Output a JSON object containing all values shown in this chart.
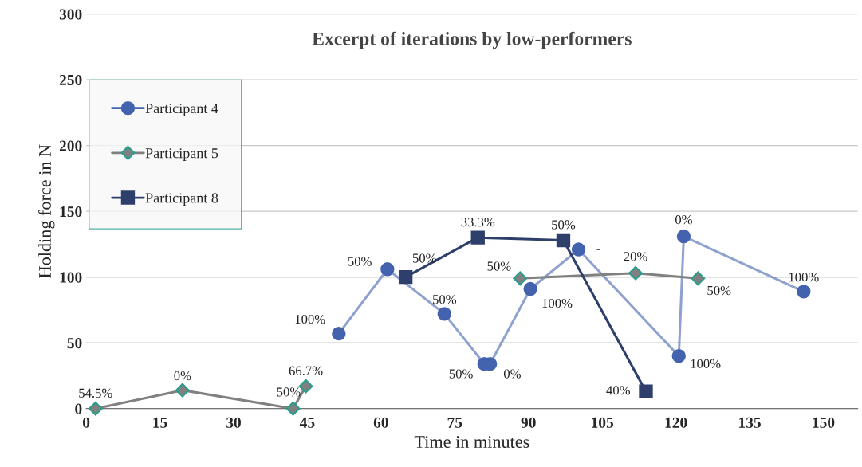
{
  "chart_data": {
    "type": "line",
    "title": "Excerpt of iterations by low-performers",
    "xlabel": "Time in minutes",
    "ylabel": "Holding force in N",
    "xlim": [
      0,
      157
    ],
    "xticks": [
      0,
      15,
      30,
      45,
      60,
      75,
      90,
      105,
      120,
      135,
      150
    ],
    "ylim": [
      0,
      300
    ],
    "yticks": [
      0,
      50,
      100,
      150,
      200,
      250,
      300
    ],
    "grid": "y",
    "legend": "top left",
    "series": [
      {
        "name": "Participant 4",
        "color": "#4463ae",
        "marker": "circle",
        "x": [
          51.4,
          61.3,
          72.9,
          81.0,
          82.2,
          90.4,
          100.2,
          120.6,
          121.6,
          146.0
        ],
        "values": [
          57,
          106,
          72,
          34,
          34,
          91,
          121,
          40,
          131,
          89
        ]
      },
      {
        "name": "Participant 5",
        "color": "#808080",
        "marker": "diamond",
        "x": [
          1.9,
          19.6,
          42.1,
          44.7,
          66.0,
          88.3,
          111.8,
          124.5
        ],
        "values": [
          0,
          14,
          0,
          17,
          null,
          99,
          103,
          99
        ]
      },
      {
        "name": "Participant 8",
        "color": "#2e3f6b",
        "marker": "square",
        "x": [
          65.0,
          79.7,
          97.1,
          113.9
        ],
        "values": [
          100,
          130,
          128,
          13
        ]
      }
    ],
    "annotations": [
      {
        "text": "100%",
        "x": 51.4,
        "y": 57
      },
      {
        "text": "50%",
        "x": 61.3,
        "y": 106
      },
      {
        "text": "50%",
        "x": 72.9,
        "y": 72
      },
      {
        "text": "50%",
        "x": 81.0,
        "y": 34
      },
      {
        "text": "0%",
        "x": 82.2,
        "y": 34
      },
      {
        "text": "100%",
        "x": 90.4,
        "y": 91
      },
      {
        "text": "-",
        "x": 100.2,
        "y": 121
      },
      {
        "text": "100%",
        "x": 120.6,
        "y": 40
      },
      {
        "text": "0%",
        "x": 121.6,
        "y": 131
      },
      {
        "text": "100%",
        "x": 146.0,
        "y": 89
      },
      {
        "text": "54.5%",
        "x": 1.9,
        "y": 0
      },
      {
        "text": "0%",
        "x": 19.6,
        "y": 14
      },
      {
        "text": "50%",
        "x": 42.1,
        "y": 0
      },
      {
        "text": "66.7%",
        "x": 44.7,
        "y": 17
      },
      {
        "text": "50%",
        "x": 88.3,
        "y": 99
      },
      {
        "text": "20%",
        "x": 111.8,
        "y": 103
      },
      {
        "text": "50%",
        "x": 124.5,
        "y": 99
      },
      {
        "text": "50%",
        "x": 65.0,
        "y": 100
      },
      {
        "text": "33.3%",
        "x": 79.7,
        "y": 130
      },
      {
        "text": "50%",
        "x": 97.1,
        "y": 128
      },
      {
        "text": "40%",
        "x": 113.9,
        "y": 13
      }
    ]
  }
}
